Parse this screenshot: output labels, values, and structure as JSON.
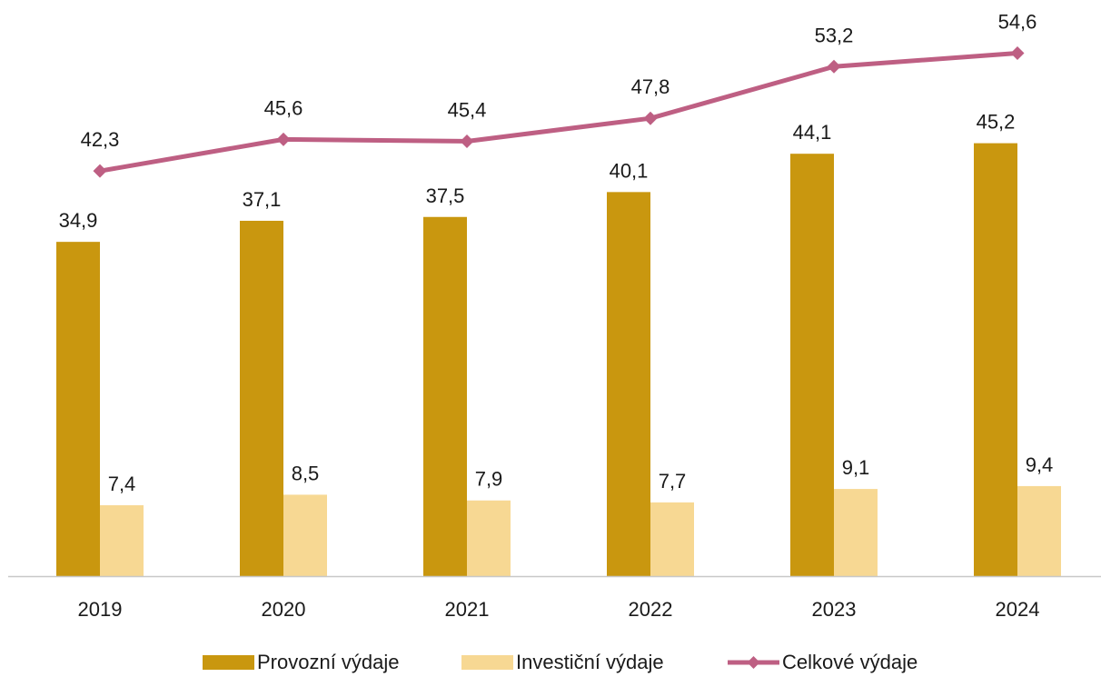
{
  "chart_data": {
    "type": "bar",
    "categories": [
      "2019",
      "2020",
      "2021",
      "2022",
      "2023",
      "2024"
    ],
    "series": [
      {
        "name": "Provozní výdaje",
        "type": "bar",
        "color": "#C9970F",
        "values": [
          34.9,
          37.1,
          37.5,
          40.1,
          44.1,
          45.2
        ],
        "labels": [
          "34,9",
          "37,1",
          "37,5",
          "40,1",
          "44,1",
          "45,2"
        ]
      },
      {
        "name": "Investiční výdaje",
        "type": "bar",
        "color": "#F7D893",
        "values": [
          7.4,
          8.5,
          7.9,
          7.7,
          9.1,
          9.4
        ],
        "labels": [
          "7,4",
          "8,5",
          "7,9",
          "7,7",
          "9,1",
          "9,4"
        ]
      },
      {
        "name": "Celkové výdaje",
        "type": "line",
        "color": "#BE5F83",
        "values": [
          42.3,
          45.6,
          45.4,
          47.8,
          53.2,
          54.6
        ],
        "labels": [
          "42,3",
          "45,6",
          "45,4",
          "47,8",
          "53,2",
          "54,6"
        ]
      }
    ],
    "title": "",
    "xlabel": "",
    "ylabel": "",
    "legend_position": "bottom",
    "grid": false,
    "value_axis_shown": false
  }
}
